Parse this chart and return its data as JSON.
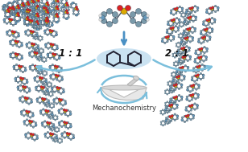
{
  "background_color": "#ffffff",
  "ratio_left": "1 : 1",
  "ratio_right": "2 : 1",
  "mechanochemistry_text": "Mechanochemistry",
  "arrow_color": "#7bbfdc",
  "arrow_down_color": "#4a90c4",
  "coformer_ellipse_color": "#c5dff0",
  "text_color": "#111111",
  "mech_text_color": "#333333",
  "figsize": [
    3.08,
    1.89
  ],
  "dpi": 100,
  "atom_C": "#7a9aaa",
  "atom_N": "#6699bb",
  "atom_O": "#dd2222",
  "atom_S": "#ddaa00",
  "atom_H": "#e0e0e0",
  "atom_dark": "#445566"
}
